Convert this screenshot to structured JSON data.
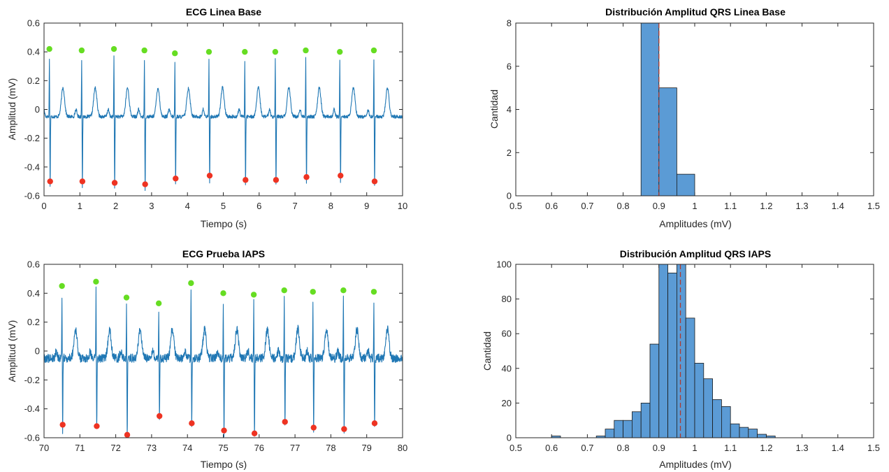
{
  "figure": {
    "colors": {
      "ecg_line": "#1f77b4",
      "r_peak": "#66dd22",
      "s_trough": "#ee3322",
      "hist_fill": "#5b9bd5",
      "hist_edge": "#1a1a1a",
      "mean_line": "#b03a2e",
      "axes": "#262626"
    }
  },
  "chart_data": [
    {
      "type": "line",
      "title": "ECG Linea Base",
      "xlabel": "Tiempo (s)",
      "ylabel": "Amplitud (mV)",
      "xlim": [
        0,
        10
      ],
      "ylim": [
        -0.6,
        0.6
      ],
      "xticks": [
        "0",
        "1",
        "2",
        "3",
        "4",
        "5",
        "6",
        "7",
        "8",
        "9",
        "10"
      ],
      "yticks": [
        "-0.6",
        "-0.4",
        "-0.2",
        "0",
        "0.2",
        "0.4",
        "0.6"
      ],
      "grid": false,
      "noise": 0.012,
      "r_peaks": [
        {
          "x": 0.15,
          "y": 0.42
        },
        {
          "x": 1.05,
          "y": 0.41
        },
        {
          "x": 1.95,
          "y": 0.42
        },
        {
          "x": 2.8,
          "y": 0.41
        },
        {
          "x": 3.65,
          "y": 0.39
        },
        {
          "x": 4.6,
          "y": 0.4
        },
        {
          "x": 5.6,
          "y": 0.4
        },
        {
          "x": 6.45,
          "y": 0.4
        },
        {
          "x": 7.3,
          "y": 0.41
        },
        {
          "x": 8.25,
          "y": 0.4
        },
        {
          "x": 9.2,
          "y": 0.41
        }
      ],
      "s_troughs": [
        {
          "x": 0.17,
          "y": -0.5
        },
        {
          "x": 1.07,
          "y": -0.5
        },
        {
          "x": 1.97,
          "y": -0.51
        },
        {
          "x": 2.82,
          "y": -0.52
        },
        {
          "x": 3.67,
          "y": -0.48
        },
        {
          "x": 4.62,
          "y": -0.46
        },
        {
          "x": 5.62,
          "y": -0.49
        },
        {
          "x": 6.47,
          "y": -0.49
        },
        {
          "x": 7.32,
          "y": -0.47
        },
        {
          "x": 8.27,
          "y": -0.46
        },
        {
          "x": 9.22,
          "y": -0.5
        }
      ]
    },
    {
      "type": "bar",
      "title": "Distribución Amplitud QRS Linea Base",
      "xlabel": "Amplitudes (mV)",
      "ylabel": "Cantidad",
      "xlim": [
        0.5,
        1.5
      ],
      "ylim": [
        0,
        8
      ],
      "xticks": [
        "0.5",
        "0.6",
        "0.7",
        "0.8",
        "0.9",
        "1",
        "1.1",
        "1.2",
        "1.3",
        "1.4",
        "1.5"
      ],
      "yticks": [
        "0",
        "2",
        "4",
        "6",
        "8"
      ],
      "grid": false,
      "bins": [
        {
          "from": 0.85,
          "to": 0.9,
          "count": 8
        },
        {
          "from": 0.9,
          "to": 0.95,
          "count": 5
        },
        {
          "from": 0.95,
          "to": 1.0,
          "count": 1
        }
      ],
      "mean": 0.9
    },
    {
      "type": "line",
      "title": "ECG Prueba IAPS",
      "xlabel": "Tiempo (s)",
      "ylabel": "Amplitud (mV)",
      "xlim": [
        70,
        80
      ],
      "ylim": [
        -0.6,
        0.6
      ],
      "xticks": [
        "70",
        "71",
        "72",
        "73",
        "74",
        "75",
        "76",
        "77",
        "78",
        "79",
        "80"
      ],
      "yticks": [
        "-0.6",
        "-0.4",
        "-0.2",
        "0",
        "0.2",
        "0.4",
        "0.6"
      ],
      "grid": false,
      "noise": 0.03,
      "r_peaks": [
        {
          "x": 70.5,
          "y": 0.45
        },
        {
          "x": 71.45,
          "y": 0.48
        },
        {
          "x": 72.3,
          "y": 0.37
        },
        {
          "x": 73.2,
          "y": 0.33
        },
        {
          "x": 74.1,
          "y": 0.47
        },
        {
          "x": 75.0,
          "y": 0.4
        },
        {
          "x": 75.85,
          "y": 0.39
        },
        {
          "x": 76.7,
          "y": 0.42
        },
        {
          "x": 77.5,
          "y": 0.41
        },
        {
          "x": 78.35,
          "y": 0.42
        },
        {
          "x": 79.2,
          "y": 0.41
        }
      ],
      "s_troughs": [
        {
          "x": 70.52,
          "y": -0.51
        },
        {
          "x": 71.47,
          "y": -0.52
        },
        {
          "x": 72.32,
          "y": -0.58
        },
        {
          "x": 73.22,
          "y": -0.45
        },
        {
          "x": 74.12,
          "y": -0.5
        },
        {
          "x": 75.02,
          "y": -0.55
        },
        {
          "x": 75.87,
          "y": -0.57
        },
        {
          "x": 76.72,
          "y": -0.49
        },
        {
          "x": 77.52,
          "y": -0.53
        },
        {
          "x": 78.37,
          "y": -0.54
        },
        {
          "x": 79.22,
          "y": -0.5
        }
      ]
    },
    {
      "type": "bar",
      "title": "Distribución Amplitud QRS IAPS",
      "xlabel": "Amplitudes (mV)",
      "ylabel": "Cantidad",
      "xlim": [
        0.5,
        1.5
      ],
      "ylim": [
        0,
        100
      ],
      "xticks": [
        "0.5",
        "0.6",
        "0.7",
        "0.8",
        "0.9",
        "1",
        "1.1",
        "1.2",
        "1.3",
        "1.4",
        "1.5"
      ],
      "yticks": [
        "0",
        "20",
        "40",
        "60",
        "80",
        "100"
      ],
      "grid": false,
      "bins": [
        {
          "from": 0.6,
          "to": 0.625,
          "count": 1
        },
        {
          "from": 0.725,
          "to": 0.75,
          "count": 1
        },
        {
          "from": 0.75,
          "to": 0.775,
          "count": 5
        },
        {
          "from": 0.775,
          "to": 0.8,
          "count": 10
        },
        {
          "from": 0.8,
          "to": 0.825,
          "count": 10
        },
        {
          "from": 0.825,
          "to": 0.85,
          "count": 15
        },
        {
          "from": 0.85,
          "to": 0.875,
          "count": 20
        },
        {
          "from": 0.875,
          "to": 0.9,
          "count": 54
        },
        {
          "from": 0.9,
          "to": 0.925,
          "count": 100
        },
        {
          "from": 0.925,
          "to": 0.95,
          "count": 95
        },
        {
          "from": 0.95,
          "to": 0.975,
          "count": 100
        },
        {
          "from": 0.975,
          "to": 1.0,
          "count": 69
        },
        {
          "from": 1.0,
          "to": 1.025,
          "count": 43
        },
        {
          "from": 1.025,
          "to": 1.05,
          "count": 34
        },
        {
          "from": 1.05,
          "to": 1.075,
          "count": 22
        },
        {
          "from": 1.075,
          "to": 1.1,
          "count": 18
        },
        {
          "from": 1.1,
          "to": 1.125,
          "count": 8
        },
        {
          "from": 1.125,
          "to": 1.15,
          "count": 6
        },
        {
          "from": 1.15,
          "to": 1.175,
          "count": 5
        },
        {
          "from": 1.175,
          "to": 1.2,
          "count": 2
        },
        {
          "from": 1.2,
          "to": 1.225,
          "count": 1
        }
      ],
      "mean": 0.96
    }
  ]
}
